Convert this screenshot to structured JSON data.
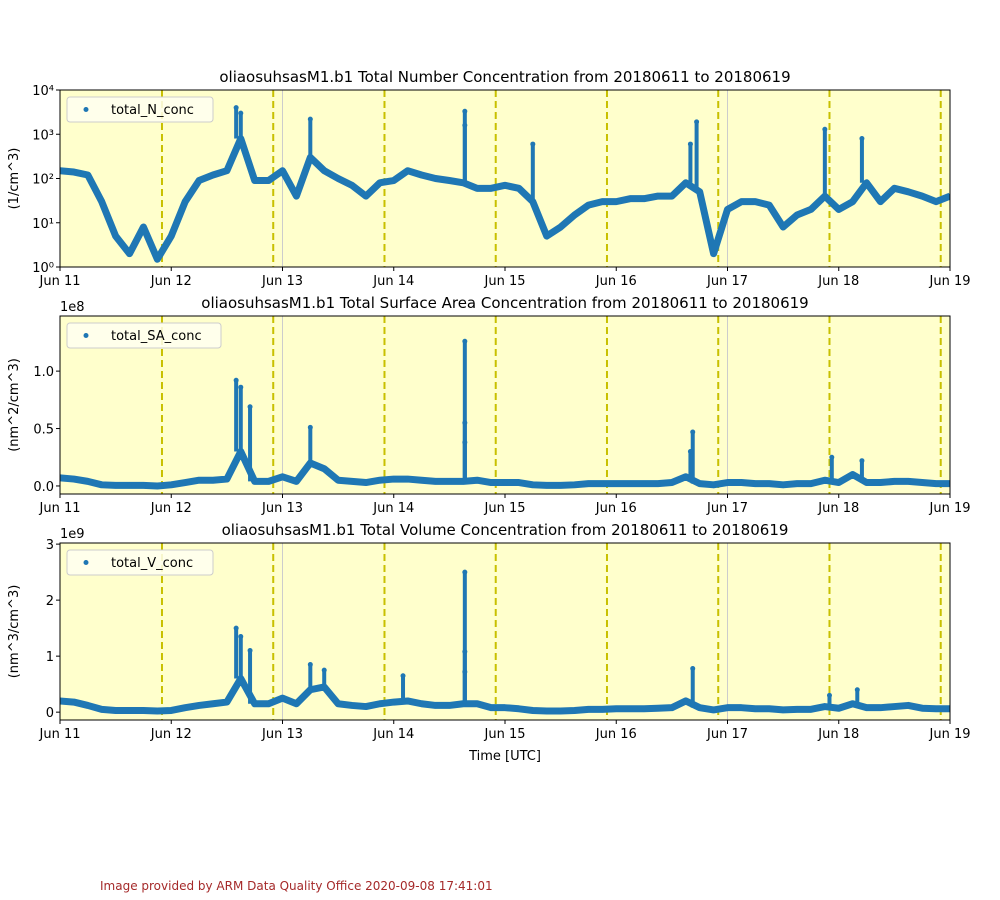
{
  "colors": {
    "series": "#1f77b4",
    "background": "#ffffcc",
    "day_marker": "#c8c000",
    "midnight_line": "#cccccc"
  },
  "footer": "Image provided by ARM Data Quality Office 2020-09-08 17:41:01",
  "x_tick_labels": [
    "Jun 11",
    "Jun 12",
    "Jun 13",
    "Jun 14",
    "Jun 15",
    "Jun 16",
    "Jun 17",
    "Jun 18",
    "Jun 19"
  ],
  "xlabel": "Time [UTC]",
  "chart_data": [
    {
      "type": "scatter",
      "title": "oliaosuhsasM1.b1 Total Number Concentration from 20180611 to 20180619",
      "ylabel": "(1/cm^3)",
      "yscale": "log",
      "ylim": [
        1,
        10000
      ],
      "yticks": [
        1,
        10,
        100,
        1000,
        10000
      ],
      "ytick_labels": [
        "10⁰",
        "10¹",
        "10²",
        "10³",
        "10⁴"
      ],
      "offset_label": "",
      "legend": "top-left",
      "series": [
        {
          "name": "total_N_conc",
          "x_start": "2018-06-11 00:00",
          "x_step_hours": 3,
          "values": [
            150,
            140,
            120,
            30,
            5,
            2,
            8,
            1.5,
            5,
            30,
            90,
            120,
            150,
            800,
            90,
            90,
            150,
            40,
            300,
            150,
            100,
            70,
            40,
            80,
            90,
            150,
            120,
            100,
            90,
            80,
            60,
            60,
            70,
            60,
            30,
            5,
            8,
            15,
            25,
            30,
            30,
            35,
            35,
            40,
            40,
            80,
            50,
            2,
            20,
            30,
            30,
            25,
            8,
            15,
            20,
            40,
            20,
            30,
            80,
            30,
            60,
            50,
            40,
            30,
            40
          ],
          "outliers": [
            [
              "2018-06-12 14:00",
              4000
            ],
            [
              "2018-06-12 15:00",
              3000
            ],
            [
              "2018-06-13 06:00",
              2200
            ],
            [
              "2018-06-14 15:20",
              3300
            ],
            [
              "2018-06-14 15:20",
              1600
            ],
            [
              "2018-06-16 16:00",
              600
            ],
            [
              "2018-06-16 17:20",
              1900
            ],
            [
              "2018-06-17 21:00",
              1300
            ],
            [
              "2018-06-18 05:00",
              800
            ],
            [
              "2018-06-15 06:00",
              600
            ]
          ]
        }
      ]
    },
    {
      "type": "scatter",
      "title": "oliaosuhsasM1.b1 Total Surface Area Concentration from 20180611 to 20180619",
      "ylabel": "(nm^2/cm^3)",
      "yscale": "linear",
      "ylim": [
        -0.07,
        1.48
      ],
      "yticks": [
        0,
        0.5,
        1.0
      ],
      "ytick_labels": [
        "0.0",
        "0.5",
        "1.0"
      ],
      "offset_label": "1e8",
      "legend": "top-left",
      "series": [
        {
          "name": "total_SA_conc",
          "x_start": "2018-06-11 00:00",
          "x_step_hours": 3,
          "values": [
            0.07,
            0.06,
            0.04,
            0.01,
            0.005,
            0.005,
            0.005,
            0.0,
            0.01,
            0.03,
            0.05,
            0.05,
            0.06,
            0.3,
            0.04,
            0.04,
            0.08,
            0.04,
            0.2,
            0.15,
            0.05,
            0.04,
            0.03,
            0.05,
            0.06,
            0.06,
            0.05,
            0.04,
            0.04,
            0.04,
            0.05,
            0.03,
            0.03,
            0.03,
            0.01,
            0.005,
            0.005,
            0.01,
            0.02,
            0.02,
            0.02,
            0.02,
            0.02,
            0.02,
            0.03,
            0.08,
            0.02,
            0.01,
            0.03,
            0.03,
            0.02,
            0.02,
            0.01,
            0.02,
            0.02,
            0.05,
            0.03,
            0.1,
            0.03,
            0.03,
            0.04,
            0.04,
            0.03,
            0.02,
            0.02
          ],
          "outliers": [
            [
              "2018-06-12 14:00",
              0.92
            ],
            [
              "2018-06-12 15:00",
              0.86
            ],
            [
              "2018-06-12 17:00",
              0.69
            ],
            [
              "2018-06-13 06:00",
              0.51
            ],
            [
              "2018-06-14 15:20",
              1.26
            ],
            [
              "2018-06-14 15:20",
              0.55
            ],
            [
              "2018-06-14 15:20",
              0.38
            ],
            [
              "2018-06-16 16:30",
              0.47
            ],
            [
              "2018-06-16 16:00",
              0.3
            ],
            [
              "2018-06-17 22:30",
              0.25
            ],
            [
              "2018-06-18 05:00",
              0.22
            ]
          ]
        }
      ]
    },
    {
      "type": "scatter",
      "title": "oliaosuhsasM1.b1 Total Volume Concentration from 20180611 to 20180619",
      "ylabel": "(nm^3/cm^3)",
      "yscale": "linear",
      "ylim": [
        -0.14,
        3.02
      ],
      "yticks": [
        0,
        1,
        2,
        3
      ],
      "ytick_labels": [
        "0",
        "1",
        "2",
        "3"
      ],
      "offset_label": "1e9",
      "legend": "top-left",
      "series": [
        {
          "name": "total_V_conc",
          "x_start": "2018-06-11 00:00",
          "x_step_hours": 3,
          "values": [
            0.2,
            0.18,
            0.12,
            0.05,
            0.03,
            0.03,
            0.03,
            0.02,
            0.03,
            0.08,
            0.12,
            0.15,
            0.18,
            0.6,
            0.15,
            0.15,
            0.25,
            0.15,
            0.4,
            0.45,
            0.15,
            0.12,
            0.1,
            0.15,
            0.18,
            0.2,
            0.15,
            0.12,
            0.12,
            0.15,
            0.15,
            0.08,
            0.08,
            0.06,
            0.03,
            0.02,
            0.02,
            0.03,
            0.05,
            0.05,
            0.06,
            0.06,
            0.06,
            0.07,
            0.08,
            0.2,
            0.08,
            0.04,
            0.08,
            0.08,
            0.06,
            0.06,
            0.04,
            0.05,
            0.05,
            0.1,
            0.07,
            0.15,
            0.08,
            0.08,
            0.1,
            0.12,
            0.07,
            0.06,
            0.06
          ],
          "outliers": [
            [
              "2018-06-12 14:00",
              1.5
            ],
            [
              "2018-06-12 15:00",
              1.35
            ],
            [
              "2018-06-12 17:00",
              1.1
            ],
            [
              "2018-06-13 06:00",
              0.85
            ],
            [
              "2018-06-13 09:00",
              0.75
            ],
            [
              "2018-06-14 02:00",
              0.65
            ],
            [
              "2018-06-14 15:20",
              2.5
            ],
            [
              "2018-06-14 15:20",
              1.08
            ],
            [
              "2018-06-14 15:20",
              0.72
            ],
            [
              "2018-06-16 16:30",
              0.78
            ],
            [
              "2018-06-17 22:00",
              0.3
            ],
            [
              "2018-06-18 04:00",
              0.4
            ]
          ]
        }
      ]
    }
  ],
  "x_range": [
    "2018-06-11 00:00",
    "2018-06-19 00:00"
  ],
  "day_markers_hour": 22,
  "midnight_lines": [
    "2018-06-13 00:00",
    "2018-06-17 00:00"
  ]
}
